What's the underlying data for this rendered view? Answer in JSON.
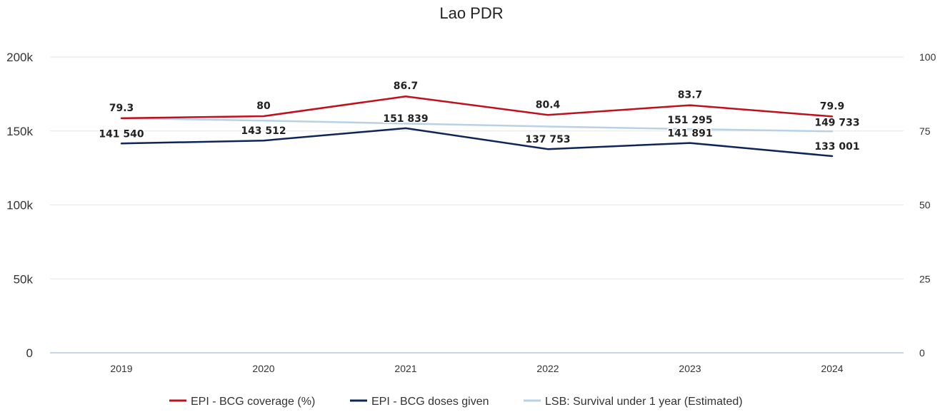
{
  "chart_data": {
    "type": "line",
    "title": "Lao PDR",
    "categories": [
      "2019",
      "2020",
      "2021",
      "2022",
      "2023",
      "2024"
    ],
    "left_axis": {
      "ylim": [
        0,
        200000
      ],
      "ticks": [
        "0",
        "50k",
        "100k",
        "150k",
        "200k"
      ]
    },
    "right_axis": {
      "ylim": [
        0,
        100
      ],
      "ticks": [
        "0",
        "25",
        "50",
        "75",
        "100"
      ]
    },
    "grid": true,
    "legend_position": "bottom",
    "series": [
      {
        "name": "EPI - BCG coverage (%)",
        "axis": "right",
        "color": "#c0101c",
        "values": [
          79.3,
          80,
          86.7,
          80.4,
          83.7,
          79.9
        ],
        "labels": [
          "79.3",
          "80",
          "86.7",
          "80.4",
          "83.7",
          "79.9"
        ]
      },
      {
        "name": "EPI - BCG doses given",
        "axis": "left",
        "color": "#0f2557",
        "values": [
          141540,
          143512,
          151839,
          137753,
          141891,
          133001
        ],
        "labels": [
          "141 540",
          "143 512",
          "151 839",
          "137 753",
          "141 891",
          "133 001"
        ]
      },
      {
        "name": "LSB: Survival under 1 year (Estimated)",
        "axis": "left",
        "color": "#b9d1e6",
        "values": [
          158600,
          157000,
          155000,
          153000,
          151295,
          149733
        ],
        "labels": [
          "",
          "",
          "",
          "",
          "151 295",
          "149 733"
        ]
      }
    ]
  }
}
